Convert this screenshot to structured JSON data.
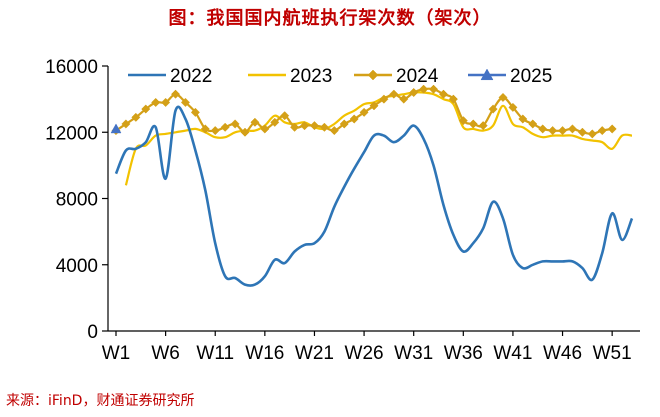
{
  "title": "图：我国国内航班执行架次数（架次）",
  "source": "来源：iFinD，财通证券研究所",
  "chart_data": {
    "type": "line",
    "title": "图：我国国内航班执行架次数（架次）",
    "xlabel": "",
    "ylabel": "",
    "ylim": [
      0,
      16000
    ],
    "yticks": [
      0,
      4000,
      8000,
      12000,
      16000
    ],
    "ytick_labels": [
      "0",
      "4000",
      "8000",
      "12000",
      "16000"
    ],
    "xlim": [
      1,
      53
    ],
    "xticks": [
      1,
      6,
      11,
      16,
      21,
      26,
      31,
      36,
      41,
      46,
      51
    ],
    "xtick_labels": [
      "W1",
      "W6",
      "W11",
      "W16",
      "W21",
      "W26",
      "W31",
      "W36",
      "W41",
      "W46",
      "W51"
    ],
    "grid": false,
    "legend": "top",
    "series": [
      {
        "name": "2022",
        "color": "#2E75B6",
        "marker": "none",
        "x": [
          1,
          2,
          3,
          4,
          5,
          6,
          7,
          8,
          9,
          10,
          11,
          12,
          13,
          14,
          15,
          16,
          17,
          18,
          19,
          20,
          21,
          22,
          23,
          24,
          25,
          26,
          27,
          28,
          29,
          30,
          31,
          32,
          33,
          34,
          35,
          36,
          37,
          38,
          39,
          40,
          41,
          42,
          43,
          44,
          45,
          46,
          47,
          48,
          49,
          50,
          51,
          52,
          53
        ],
        "values": [
          9500,
          10900,
          11000,
          11400,
          12300,
          9200,
          13300,
          12800,
          10900,
          8500,
          5300,
          3300,
          3200,
          2800,
          2800,
          3300,
          4300,
          4100,
          4800,
          5200,
          5300,
          6000,
          7500,
          8700,
          9800,
          10800,
          11800,
          11800,
          11400,
          11800,
          12400,
          11600,
          10000,
          7600,
          5800,
          4800,
          5300,
          6200,
          7800,
          6800,
          4600,
          3800,
          4000,
          4200,
          4200,
          4200,
          4200,
          3800,
          3100,
          4700,
          7100,
          5500,
          6800
        ]
      },
      {
        "name": "2023",
        "color": "#F2C200",
        "marker": "none",
        "x": [
          2,
          3,
          4,
          5,
          6,
          7,
          8,
          9,
          10,
          11,
          12,
          13,
          14,
          15,
          16,
          17,
          18,
          19,
          20,
          21,
          22,
          23,
          24,
          25,
          26,
          27,
          28,
          29,
          30,
          31,
          32,
          33,
          34,
          35,
          36,
          37,
          38,
          39,
          40,
          41,
          42,
          43,
          44,
          45,
          46,
          47,
          48,
          49,
          50,
          51,
          52,
          53
        ],
        "values": [
          8800,
          11000,
          11200,
          11800,
          11900,
          12000,
          12100,
          12200,
          12000,
          11700,
          11700,
          12000,
          12100,
          12100,
          12400,
          13000,
          12600,
          12500,
          12600,
          12300,
          12200,
          12500,
          13000,
          13300,
          13700,
          13800,
          14100,
          14200,
          14300,
          14400,
          14400,
          14300,
          14000,
          13700,
          12300,
          12200,
          12100,
          12400,
          13600,
          12500,
          12300,
          11900,
          11700,
          11800,
          11800,
          11800,
          11600,
          11500,
          11400,
          11000,
          11800,
          11800
        ]
      },
      {
        "name": "2024",
        "color": "#D4A017",
        "marker": "diamond",
        "x": [
          1,
          2,
          3,
          4,
          5,
          6,
          7,
          8,
          9,
          10,
          11,
          12,
          13,
          14,
          15,
          16,
          17,
          18,
          19,
          20,
          21,
          22,
          23,
          24,
          25,
          26,
          27,
          28,
          29,
          30,
          31,
          32,
          33,
          34,
          35,
          36,
          37,
          38,
          39,
          40,
          41,
          42,
          43,
          44,
          45,
          46,
          47,
          48,
          49,
          50,
          51
        ],
        "values": [
          12100,
          12500,
          12900,
          13400,
          13800,
          13800,
          14300,
          13800,
          13200,
          12200,
          12100,
          12300,
          12500,
          12000,
          12600,
          12200,
          12600,
          13000,
          12300,
          12400,
          12400,
          12300,
          12100,
          12500,
          12800,
          13200,
          13600,
          14000,
          14300,
          14000,
          14400,
          14600,
          14600,
          14300,
          14000,
          12700,
          12500,
          12400,
          13400,
          14100,
          13500,
          12800,
          12500,
          12200,
          12100,
          12100,
          12200,
          12000,
          11900,
          12100,
          12200
        ]
      },
      {
        "name": "2025",
        "color": "#4472C4",
        "marker": "triangle",
        "x": [
          1
        ],
        "values": [
          12200
        ]
      }
    ]
  }
}
